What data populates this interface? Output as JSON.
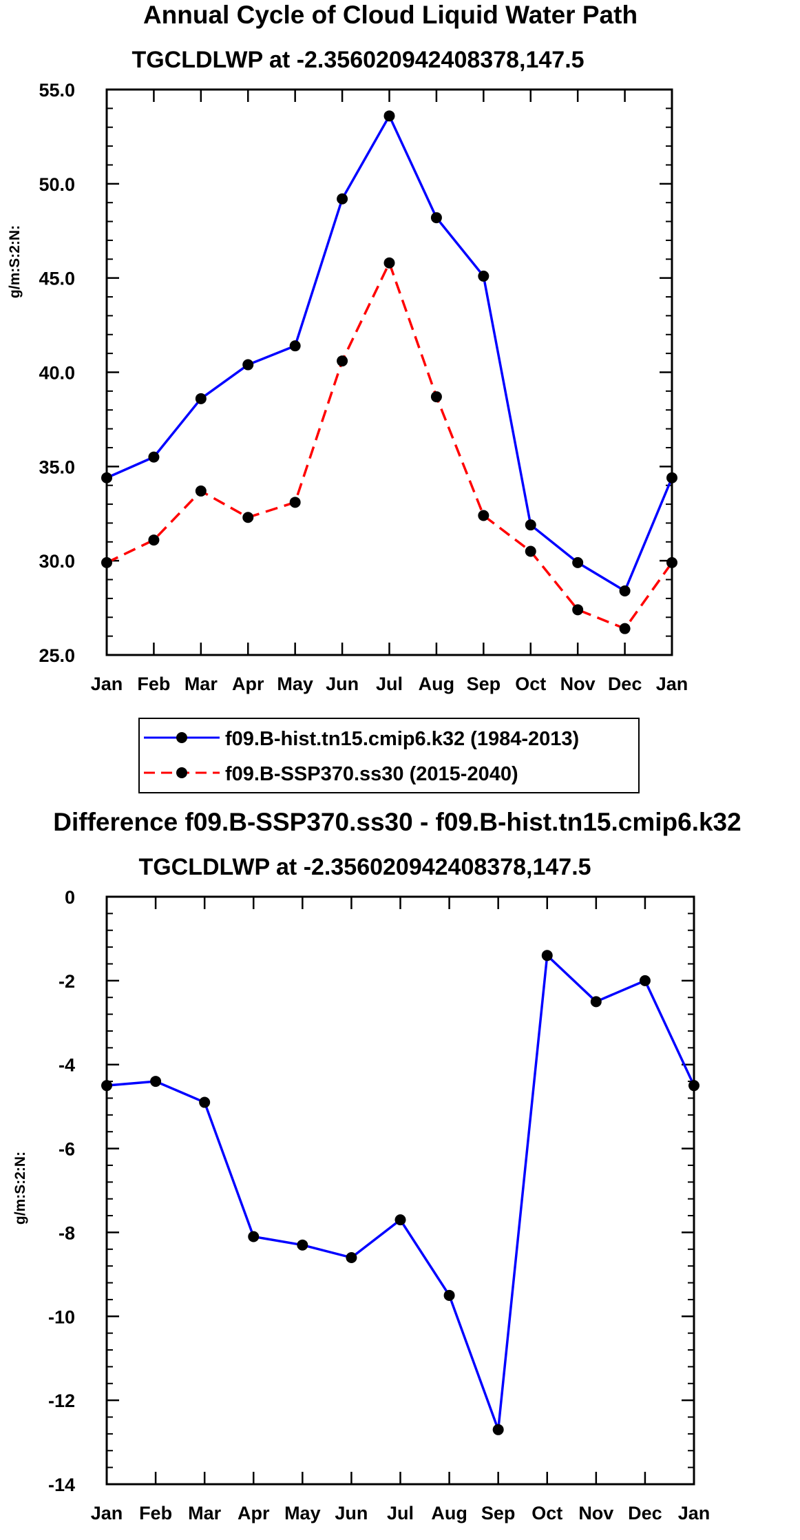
{
  "chart_data": [
    {
      "type": "line",
      "title": "Annual Cycle of Cloud Liquid Water Path",
      "subtitle": "TGCLDLWP at -2.356020942408378,147.5",
      "xlabel": "",
      "ylabel": "g/m:S:2:N:",
      "categories": [
        "Jan",
        "Feb",
        "Mar",
        "Apr",
        "May",
        "Jun",
        "Jul",
        "Aug",
        "Sep",
        "Oct",
        "Nov",
        "Dec",
        "Jan"
      ],
      "ylim": [
        25,
        55
      ],
      "yticks": [
        "55.0",
        "50.0",
        "45.0",
        "40.0",
        "35.0",
        "30.0",
        "25.0"
      ],
      "ytick_values": [
        55,
        50,
        45,
        40,
        35,
        30,
        25
      ],
      "series": [
        {
          "name": "f09.B-hist.tn15.cmip6.k32 (1984-2013)",
          "color": "#0000ff",
          "dash": "solid",
          "values": [
            34.4,
            35.5,
            38.6,
            40.4,
            41.4,
            49.2,
            53.6,
            48.2,
            45.1,
            31.9,
            29.9,
            28.4,
            34.4
          ]
        },
        {
          "name": "f09.B-SSP370.ss30 (2015-2040)",
          "color": "#ff0000",
          "dash": "dashed",
          "values": [
            29.9,
            31.1,
            33.7,
            32.3,
            33.1,
            40.6,
            45.8,
            38.7,
            32.4,
            30.5,
            27.4,
            26.4,
            29.9
          ]
        }
      ],
      "legend": "below"
    },
    {
      "type": "line",
      "title": "Difference f09.B-SSP370.ss30 - f09.B-hist.tn15.cmip6.k32",
      "subtitle": "TGCLDLWP at -2.356020942408378,147.5",
      "xlabel": "",
      "ylabel": "g/m:S:2:N:",
      "categories": [
        "Jan",
        "Feb",
        "Mar",
        "Apr",
        "May",
        "Jun",
        "Jul",
        "Aug",
        "Sep",
        "Oct",
        "Nov",
        "Dec",
        "Jan"
      ],
      "ylim": [
        -14,
        0
      ],
      "yticks": [
        "0",
        "-2",
        "-4",
        "-6",
        "-8",
        "-10",
        "-12",
        "-14"
      ],
      "ytick_values": [
        0,
        -2,
        -4,
        -6,
        -8,
        -10,
        -12,
        -14
      ],
      "series": [
        {
          "name": "difference",
          "color": "#0000ff",
          "dash": "solid",
          "values": [
            -4.5,
            -4.4,
            -4.9,
            -8.1,
            -8.3,
            -8.6,
            -7.7,
            -9.5,
            -12.7,
            -1.4,
            -2.5,
            -2.0,
            -4.5
          ]
        }
      ]
    }
  ]
}
